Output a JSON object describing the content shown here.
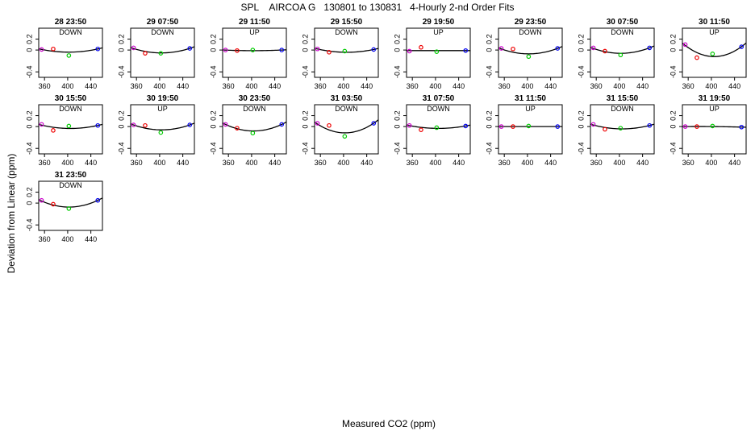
{
  "figure": {
    "title": "SPL    AIRCOA G   130801 to 130831   4-Hourly 2-nd Order Fits",
    "xlabel": "Measured CO2 (ppm)",
    "ylabel": "Deviation from Linear (ppm)"
  },
  "colors": {
    "curve": "#000000",
    "point_1": "#cc00cc",
    "point_2": "#ee0000",
    "point_3": "#00cc00",
    "point_4": "#0000ee"
  },
  "chart_data": {
    "type": "scatter",
    "xlim": [
      350,
      460
    ],
    "ylim": [
      -0.5,
      0.4
    ],
    "xticks": [
      360,
      400,
      440
    ],
    "yticks": [
      -0.4,
      0,
      0.2
    ],
    "ytick_labels": [
      "-0.4",
      "0",
      "0.2"
    ],
    "x_standards": [
      355,
      375,
      402,
      452
    ],
    "panels": [
      {
        "time": "28 23:50",
        "dir": "DOWN",
        "y": [
          0.01,
          0.02,
          -0.1,
          0.02
        ],
        "fit": [
          0.01,
          -0.02,
          -0.04,
          0.02
        ]
      },
      {
        "time": "29 07:50",
        "dir": "DOWN",
        "y": [
          0.04,
          -0.06,
          -0.06,
          0.03
        ],
        "fit": [
          0.03,
          -0.03,
          -0.05,
          0.03
        ]
      },
      {
        "time": "29 11:50",
        "dir": "UP",
        "y": [
          0.0,
          -0.01,
          0.0,
          0.0
        ],
        "fit": [
          0.0,
          -0.01,
          -0.01,
          0.0
        ]
      },
      {
        "time": "29 15:50",
        "dir": "DOWN",
        "y": [
          0.02,
          -0.04,
          -0.02,
          0.01
        ],
        "fit": [
          0.02,
          -0.02,
          -0.04,
          0.01
        ]
      },
      {
        "time": "29 19:50",
        "dir": "UP",
        "y": [
          -0.02,
          0.05,
          -0.03,
          -0.01
        ],
        "fit": [
          -0.01,
          -0.01,
          -0.01,
          -0.01
        ]
      },
      {
        "time": "29 23:50",
        "dir": "DOWN",
        "y": [
          0.03,
          0.02,
          -0.12,
          0.03
        ],
        "fit": [
          0.02,
          -0.04,
          -0.07,
          0.03
        ]
      },
      {
        "time": "30 07:50",
        "dir": "DOWN",
        "y": [
          0.04,
          -0.02,
          -0.09,
          0.04
        ],
        "fit": [
          0.03,
          -0.03,
          -0.06,
          0.04
        ]
      },
      {
        "time": "30 11:50",
        "dir": "UP",
        "y": [
          0.1,
          -0.14,
          -0.07,
          0.06
        ],
        "fit": [
          0.09,
          -0.06,
          -0.11,
          0.06
        ]
      },
      {
        "time": "30 15:50",
        "dir": "DOWN",
        "y": [
          0.04,
          -0.07,
          0.01,
          0.02
        ],
        "fit": [
          0.03,
          -0.02,
          -0.03,
          0.02
        ]
      },
      {
        "time": "30 19:50",
        "dir": "UP",
        "y": [
          0.03,
          0.02,
          -0.11,
          0.03
        ],
        "fit": [
          0.03,
          -0.03,
          -0.06,
          0.03
        ]
      },
      {
        "time": "30 23:50",
        "dir": "DOWN",
        "y": [
          0.04,
          -0.03,
          -0.12,
          0.04
        ],
        "fit": [
          0.04,
          -0.04,
          -0.08,
          0.04
        ]
      },
      {
        "time": "31 03:50",
        "dir": "DOWN",
        "y": [
          0.06,
          0.02,
          -0.18,
          0.06
        ],
        "fit": [
          0.05,
          -0.07,
          -0.11,
          0.06
        ]
      },
      {
        "time": "31 07:50",
        "dir": "DOWN",
        "y": [
          0.02,
          -0.06,
          -0.02,
          0.01
        ],
        "fit": [
          0.02,
          -0.02,
          -0.03,
          0.01
        ]
      },
      {
        "time": "31 11:50",
        "dir": "UP",
        "y": [
          0.0,
          0.0,
          0.01,
          0.0
        ],
        "fit": [
          0.0,
          0.0,
          0.0,
          0.0
        ]
      },
      {
        "time": "31 15:50",
        "dir": "DOWN",
        "y": [
          0.04,
          -0.05,
          -0.03,
          0.02
        ],
        "fit": [
          0.03,
          -0.02,
          -0.04,
          0.02
        ]
      },
      {
        "time": "31 19:50",
        "dir": "UP",
        "y": [
          0.0,
          0.0,
          0.01,
          -0.01
        ],
        "fit": [
          0.0,
          0.0,
          0.0,
          -0.01
        ]
      },
      {
        "time": "31 23:50",
        "dir": "DOWN",
        "y": [
          0.05,
          -0.02,
          -0.1,
          0.05
        ],
        "fit": [
          0.04,
          -0.04,
          -0.07,
          0.05
        ]
      }
    ]
  }
}
